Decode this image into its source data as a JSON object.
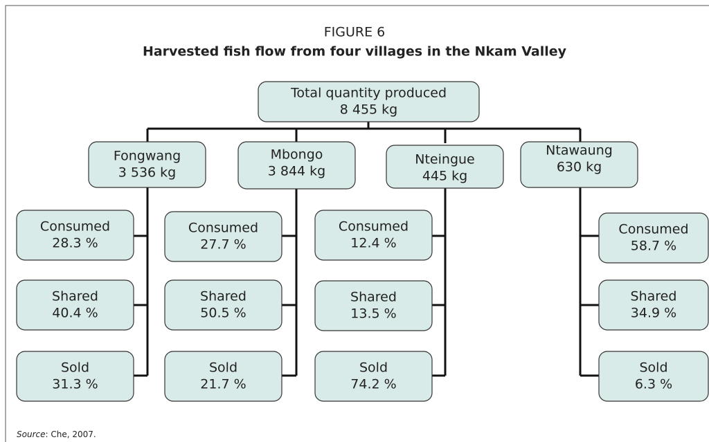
{
  "figure_label": "FIGURE 6",
  "title": "Harvested fish flow from four villages in the Nkam Valley",
  "root": {
    "lines": [
      "Total quantity produced",
      "8 455 kg"
    ]
  },
  "villages": [
    {
      "name": "Fongwang",
      "quantity": "3 536 kg",
      "flows": [
        {
          "label": "Consumed",
          "share": "28.3 %"
        },
        {
          "label": "Shared",
          "share": "40.4 %"
        },
        {
          "label": "Sold",
          "share": "31.3 %"
        }
      ]
    },
    {
      "name": "Mbongo",
      "quantity": "3 844 kg",
      "flows": [
        {
          "label": "Consumed",
          "share": "27.7 %"
        },
        {
          "label": "Shared",
          "share": "50.5 %"
        },
        {
          "label": "Sold",
          "share": "21.7 %"
        }
      ]
    },
    {
      "name": "Nteingue",
      "quantity": "445 kg",
      "flows": [
        {
          "label": "Consumed",
          "share": "12.4 %"
        },
        {
          "label": "Shared",
          "share": "13.5 %"
        },
        {
          "label": "Sold",
          "share": "74.2 %"
        }
      ]
    },
    {
      "name": "Ntawaung",
      "quantity": "630 kg",
      "flows": [
        {
          "label": "Consumed",
          "share": "58.7 %"
        },
        {
          "label": "Shared",
          "share": "34.9 %"
        },
        {
          "label": "Sold",
          "share": "6.3 %"
        }
      ]
    }
  ],
  "source": {
    "label": "Source",
    "text": ": Che, 2007."
  }
}
